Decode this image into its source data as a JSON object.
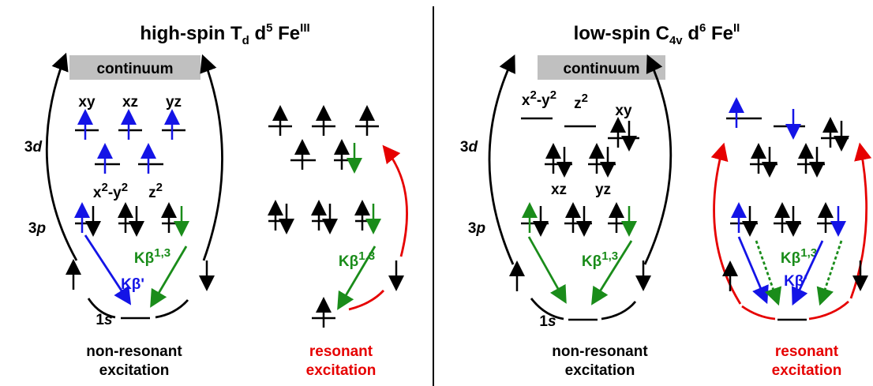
{
  "left_panel": {
    "title": [
      "high-spin T",
      "d",
      " d",
      "5",
      " Fe",
      "III"
    ],
    "continuum": "continuum",
    "shells": {
      "d": [
        "3",
        "d"
      ],
      "p": [
        "3",
        "p"
      ],
      "s": [
        "1",
        "s"
      ]
    },
    "orbitals": [
      "xy",
      "xz",
      "yz"
    ],
    "x2_y2": [
      "x",
      "2",
      "-y",
      "2"
    ],
    "z2": [
      "z",
      "2"
    ],
    "nonresonant": {
      "kbeta13": [
        "Kβ",
        "1,3"
      ],
      "kbeta_prime": "Kβ'",
      "caption": [
        "non-resonant",
        "excitation"
      ]
    },
    "resonant": {
      "kbeta13": [
        "Kβ",
        "1,3"
      ],
      "caption": [
        "resonant",
        "excitation"
      ]
    }
  },
  "right_panel": {
    "title": [
      "low-spin C",
      "4v",
      " d",
      "6",
      " Fe",
      "II"
    ],
    "continuum": "continuum",
    "shells": {
      "d": [
        "3",
        "d"
      ],
      "p": [
        "3",
        "p"
      ],
      "s": [
        "1",
        "s"
      ]
    },
    "x2_y2": [
      "x",
      "2",
      "-y",
      "2"
    ],
    "z2": [
      "z",
      "2"
    ],
    "orbitals": [
      "xy",
      "xz",
      "yz"
    ],
    "nonresonant": {
      "kbeta13": [
        "Kβ",
        "1,3"
      ],
      "caption": [
        "non-resonant",
        "excitation"
      ]
    },
    "resonant": {
      "kbeta13": [
        "Kβ",
        "1,3"
      ],
      "kbeta_prime": "Kβ'",
      "caption": [
        "resonant",
        "excitation"
      ]
    }
  }
}
